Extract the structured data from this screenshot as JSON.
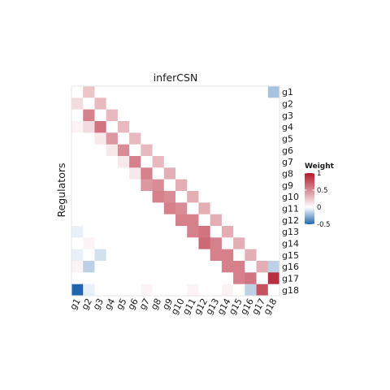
{
  "chart_data": {
    "type": "heatmap",
    "title": "inferCSN",
    "xlabel": "",
    "ylabel": "Regulators",
    "x_categories": [
      "g1",
      "g2",
      "g3",
      "g4",
      "g5",
      "g6",
      "g7",
      "g8",
      "g9",
      "g10",
      "g11",
      "g12",
      "g13",
      "g14",
      "g15",
      "g16",
      "g17",
      "g18"
    ],
    "y_categories": [
      "g1",
      "g2",
      "g3",
      "g4",
      "g5",
      "g6",
      "g7",
      "g8",
      "g9",
      "g10",
      "g11",
      "g12",
      "g13",
      "g14",
      "g15",
      "g16",
      "g17",
      "g18"
    ],
    "values": [
      [
        0,
        0.25,
        0,
        0,
        0,
        0,
        0,
        0,
        0,
        0,
        0,
        0,
        0,
        0,
        0,
        0,
        0,
        -0.2
      ],
      [
        0.15,
        0,
        0.3,
        0,
        0,
        0,
        0,
        0,
        0,
        0,
        0,
        0,
        0,
        0,
        0,
        0,
        0,
        0
      ],
      [
        0,
        0.55,
        0,
        0.3,
        0,
        0,
        0,
        0,
        0,
        0,
        0,
        0,
        0,
        0,
        0,
        0,
        0,
        0
      ],
      [
        0.05,
        0.15,
        0.6,
        0,
        0.3,
        0,
        0,
        0,
        0,
        0,
        0,
        0,
        0,
        0,
        0,
        0,
        0,
        0
      ],
      [
        0,
        0,
        0.1,
        0.45,
        0,
        0.3,
        0,
        0,
        0,
        0,
        0,
        0,
        0,
        0,
        0,
        0,
        0,
        0
      ],
      [
        0,
        0,
        0,
        0.1,
        0.5,
        0,
        0.3,
        0,
        0,
        0,
        0,
        0,
        0,
        0,
        0,
        0,
        0,
        0
      ],
      [
        0,
        0,
        0,
        0,
        0.1,
        0.55,
        0,
        0.3,
        0,
        0,
        0,
        0,
        0,
        0,
        0,
        0,
        0,
        0
      ],
      [
        0,
        0,
        0,
        0,
        0,
        0.1,
        0.55,
        0,
        0.35,
        0,
        0,
        0,
        0,
        0,
        0,
        0,
        0,
        0
      ],
      [
        0,
        0,
        0,
        0,
        0,
        0,
        0.45,
        0.5,
        0,
        0.35,
        0,
        0,
        0,
        0,
        0,
        0,
        0,
        0
      ],
      [
        0,
        0,
        0,
        0,
        0,
        0,
        0,
        0.55,
        0.5,
        0,
        0.35,
        0,
        0,
        0,
        0,
        0,
        0,
        0
      ],
      [
        0,
        0,
        0,
        0,
        0,
        0,
        0,
        0,
        0.55,
        0.5,
        0,
        0.35,
        0,
        0,
        0,
        0,
        0,
        0
      ],
      [
        0,
        0,
        0,
        0,
        0,
        0,
        0,
        0,
        0,
        0.55,
        0.55,
        0,
        0.35,
        0,
        0,
        0,
        0,
        0
      ],
      [
        -0.05,
        0,
        0,
        0,
        0,
        0,
        0,
        0,
        0,
        0,
        0.55,
        0.6,
        0,
        0.35,
        0,
        0,
        0,
        0
      ],
      [
        0,
        0.05,
        0,
        0,
        0,
        0,
        0,
        0,
        0,
        0,
        0,
        0.65,
        0.55,
        0,
        0.35,
        0,
        0,
        0
      ],
      [
        -0.05,
        0,
        -0.1,
        0,
        0,
        0,
        0,
        0,
        0,
        0,
        0,
        0,
        0.55,
        0.55,
        0,
        0.35,
        0,
        0
      ],
      [
        0.05,
        -0.15,
        0,
        0,
        0,
        0,
        0,
        0,
        0,
        0,
        0,
        0,
        0,
        0.55,
        0.55,
        0,
        0.35,
        -0.15
      ],
      [
        0,
        0,
        0,
        0,
        0,
        0,
        0,
        0,
        0,
        0,
        0,
        0,
        0,
        0,
        0.55,
        0.6,
        0,
        0.9
      ],
      [
        -0.55,
        -0.05,
        0,
        0,
        0,
        0,
        0.05,
        0,
        0,
        0,
        0.05,
        0,
        0,
        0.05,
        0,
        -0.15,
        0.75,
        0
      ]
    ],
    "color_scale": {
      "low": "#2166ac",
      "mid": "#ffffff",
      "high": "#b2182b",
      "limits": [
        -0.5,
        1
      ]
    },
    "legend": {
      "title": "Weight",
      "position": "right",
      "breaks": [
        1,
        0.5,
        0,
        -0.5
      ],
      "labels": [
        "1",
        "0.5",
        "0",
        "-0.5"
      ]
    },
    "grid": false
  }
}
